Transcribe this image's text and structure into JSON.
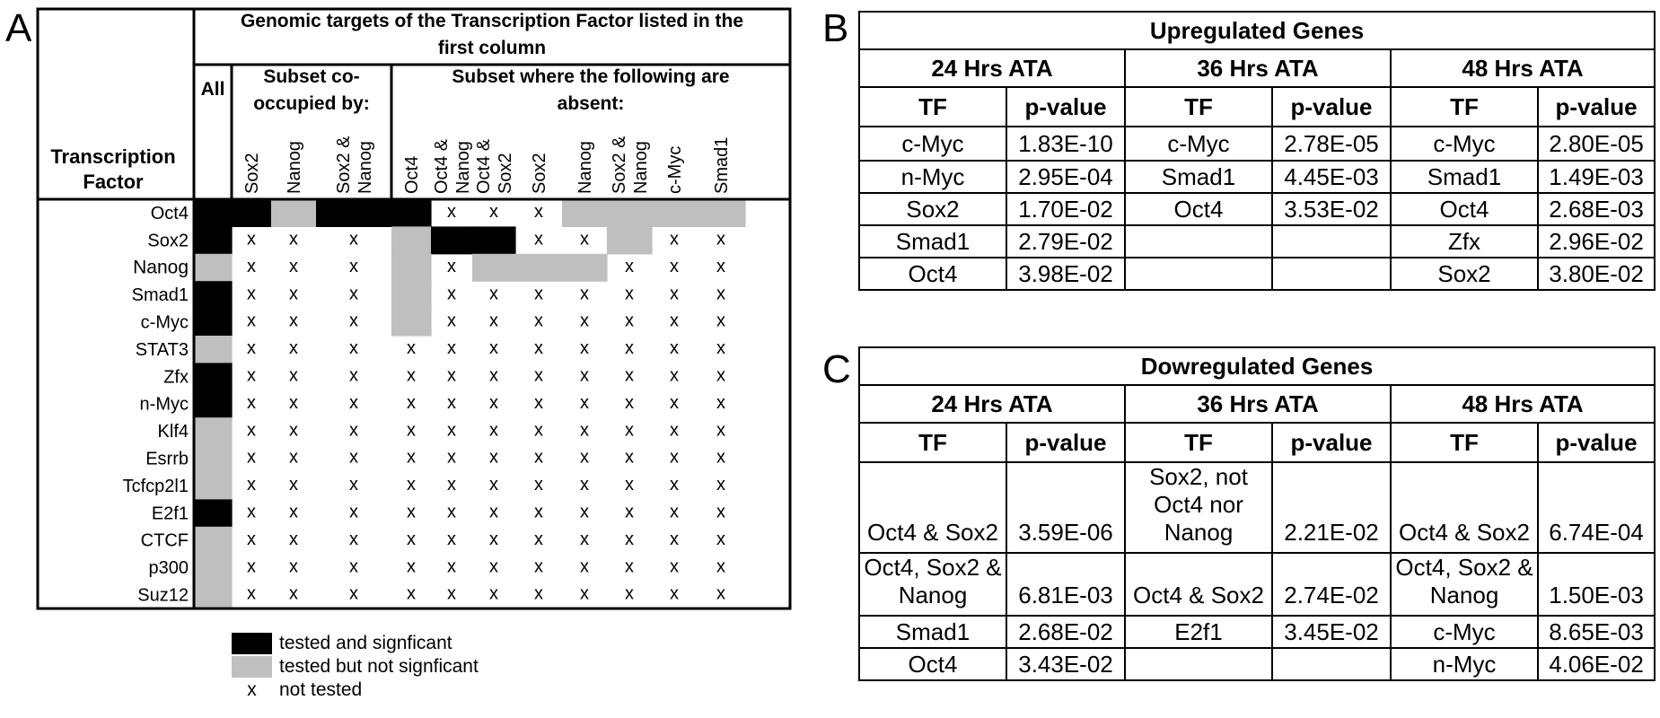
{
  "panel_labels": {
    "a": "A",
    "b": "B",
    "c": "C"
  },
  "panel_a": {
    "corner_label_line1": "Transcription",
    "corner_label_line2": "Factor",
    "header_line1": "Genomic targets of the Transcription Factor listed in the",
    "header_line2": "first column",
    "all_label": "All",
    "subset_co_line1": "Subset co-",
    "subset_co_line2": "occupied by:",
    "subset_absent_line1": "Subset where the following are",
    "subset_absent_line2": "absent:",
    "columns": [
      [
        "Sox2"
      ],
      [
        "Nanog"
      ],
      [
        "Sox2 &",
        "Nanog"
      ],
      [
        "Oct4"
      ],
      [
        "Oct4 &",
        "Nanog"
      ],
      [
        "Oct4 &",
        "Sox2"
      ],
      [
        "Sox2"
      ],
      [
        "Nanog"
      ],
      [
        "Sox2 &",
        "Nanog"
      ],
      [
        "c-Myc"
      ],
      [
        "Smad1"
      ]
    ],
    "rows": [
      "Oct4",
      "Sox2",
      "Nanog",
      "Smad1",
      "c-Myc",
      "STAT3",
      "Zfx",
      "n-Myc",
      "Klf4",
      "Esrrb",
      "Tcfcp2l1",
      "E2f1",
      "CTCF",
      "p300",
      "Suz12"
    ],
    "cells": [
      [
        "B",
        "B",
        "G",
        "B",
        "B",
        "X",
        "X",
        "X",
        "G",
        "G",
        "G",
        "G"
      ],
      [
        "B",
        "X",
        "X",
        "X",
        "G",
        "B",
        "B",
        "X",
        "X",
        "G",
        "X",
        "X"
      ],
      [
        "G",
        "X",
        "X",
        "X",
        "G",
        "X",
        "G",
        "G",
        "G",
        "X",
        "X",
        "X"
      ],
      [
        "B",
        "X",
        "X",
        "X",
        "G",
        "X",
        "X",
        "X",
        "X",
        "X",
        "X",
        "X"
      ],
      [
        "B",
        "X",
        "X",
        "X",
        "G",
        "X",
        "X",
        "X",
        "X",
        "X",
        "X",
        "X"
      ],
      [
        "G",
        "X",
        "X",
        "X",
        "X",
        "X",
        "X",
        "X",
        "X",
        "X",
        "X",
        "X"
      ],
      [
        "B",
        "X",
        "X",
        "X",
        "X",
        "X",
        "X",
        "X",
        "X",
        "X",
        "X",
        "X"
      ],
      [
        "B",
        "X",
        "X",
        "X",
        "X",
        "X",
        "X",
        "X",
        "X",
        "X",
        "X",
        "X"
      ],
      [
        "G",
        "X",
        "X",
        "X",
        "X",
        "X",
        "X",
        "X",
        "X",
        "X",
        "X",
        "X"
      ],
      [
        "G",
        "X",
        "X",
        "X",
        "X",
        "X",
        "X",
        "X",
        "X",
        "X",
        "X",
        "X"
      ],
      [
        "G",
        "X",
        "X",
        "X",
        "X",
        "X",
        "X",
        "X",
        "X",
        "X",
        "X",
        "X"
      ],
      [
        "B",
        "X",
        "X",
        "X",
        "X",
        "X",
        "X",
        "X",
        "X",
        "X",
        "X",
        "X"
      ],
      [
        "G",
        "X",
        "X",
        "X",
        "X",
        "X",
        "X",
        "X",
        "X",
        "X",
        "X",
        "X"
      ],
      [
        "G",
        "X",
        "X",
        "X",
        "X",
        "X",
        "X",
        "X",
        "X",
        "X",
        "X",
        "X"
      ],
      [
        "G",
        "X",
        "X",
        "X",
        "X",
        "X",
        "X",
        "X",
        "X",
        "X",
        "X",
        "X"
      ]
    ],
    "mark_x": "x",
    "colors": {
      "significant": "#000000",
      "not_significant": "#bfbfbf"
    },
    "legend": [
      {
        "kind": "significant",
        "label": "tested and signficant"
      },
      {
        "kind": "not_significant",
        "label": "tested but not signficant"
      },
      {
        "kind": "not_tested",
        "symbol": "x",
        "label": "not tested"
      }
    ]
  },
  "panel_b": {
    "title": "Upregulated Genes",
    "groups": [
      "24 Hrs ATA",
      "36 Hrs ATA",
      "48 Hrs ATA"
    ],
    "col_tf": "TF",
    "col_p": "p-value",
    "rows": [
      [
        [
          "c-Myc",
          "1.83E-10"
        ],
        [
          "c-Myc",
          "2.78E-05"
        ],
        [
          "c-Myc",
          "2.80E-05"
        ]
      ],
      [
        [
          "n-Myc",
          "2.95E-04"
        ],
        [
          "Smad1",
          "4.45E-03"
        ],
        [
          "Smad1",
          "1.49E-03"
        ]
      ],
      [
        [
          "Sox2",
          "1.70E-02"
        ],
        [
          "Oct4",
          "3.53E-02"
        ],
        [
          "Oct4",
          "2.68E-03"
        ]
      ],
      [
        [
          "Smad1",
          "2.79E-02"
        ],
        [
          "",
          ""
        ],
        [
          "Zfx",
          "2.96E-02"
        ]
      ],
      [
        [
          "Oct4",
          "3.98E-02"
        ],
        [
          "",
          ""
        ],
        [
          "Sox2",
          "3.80E-02"
        ]
      ]
    ]
  },
  "panel_c": {
    "title": "Dowregulated Genes",
    "groups": [
      "24 Hrs ATA",
      "36 Hrs ATA",
      "48 Hrs ATA"
    ],
    "col_tf": "TF",
    "col_p": "p-value",
    "rows": [
      [
        [
          "Oct4 & Sox2",
          "3.59E-06"
        ],
        [
          "Sox2, not\nOct4 nor\nNanog",
          "2.21E-02"
        ],
        [
          "Oct4 & Sox2",
          "6.74E-04"
        ]
      ],
      [
        [
          "Oct4, Sox2 &\nNanog",
          "6.81E-03"
        ],
        [
          "Oct4 & Sox2",
          "2.74E-02"
        ],
        [
          "Oct4, Sox2 &\nNanog",
          "1.50E-03"
        ]
      ],
      [
        [
          "Smad1",
          "2.68E-02"
        ],
        [
          "E2f1",
          "3.45E-02"
        ],
        [
          "c-Myc",
          "8.65E-03"
        ]
      ],
      [
        [
          "Oct4",
          "3.43E-02"
        ],
        [
          "",
          ""
        ],
        [
          "n-Myc",
          "4.06E-02"
        ]
      ]
    ]
  }
}
